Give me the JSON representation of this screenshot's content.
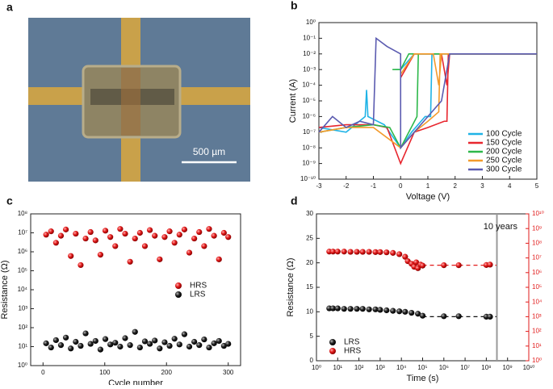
{
  "image_panel": {
    "label": "a",
    "scale_bar": "500 µm"
  },
  "chart_data": [
    {
      "type": "line",
      "label": "b",
      "xlabel": "Voltage (V)",
      "ylabel": "Current (A)",
      "yscale": "log",
      "legend": "lower right",
      "xlim": [
        -3,
        5
      ],
      "xticks": [
        -3,
        -2,
        -1,
        0,
        1,
        2,
        3,
        4,
        5
      ],
      "ylim": [
        1e-10,
        1
      ],
      "yticks": [
        {
          "value": 1e-10,
          "label": "10⁻¹⁰"
        },
        {
          "value": 1e-09,
          "label": "10⁻⁹"
        },
        {
          "value": 1e-08,
          "label": "10⁻⁸"
        },
        {
          "value": 1e-07,
          "label": "10⁻⁷"
        },
        {
          "value": 1e-06,
          "label": "10⁻⁶"
        },
        {
          "value": 1e-05,
          "label": "10⁻⁵"
        },
        {
          "value": 0.0001,
          "label": "10⁻⁴"
        },
        {
          "value": 0.001,
          "label": "10⁻³"
        },
        {
          "value": 0.01,
          "label": "10⁻²"
        },
        {
          "value": 0.1,
          "label": "10⁻¹"
        },
        {
          "value": 1,
          "label": "10⁰"
        }
      ],
      "series": [
        {
          "name": "100 Cycle",
          "color": "#1fb3e6",
          "x": [
            -3,
            -2,
            -1.3,
            -1.25,
            -1.2,
            -0.6,
            0,
            0.4,
            0.9,
            1.1,
            1.15,
            5,
            1.3,
            0.5,
            0,
            -0.2
          ],
          "values": [
            2e-07,
            1e-07,
            1e-06,
            5e-05,
            1e-06,
            3e-07,
            1e-08,
            1e-07,
            1e-06,
            1e-06,
            0.01,
            0.01,
            0.01,
            0.01,
            0.001,
            0.001
          ]
        },
        {
          "name": "150 Cycle",
          "color": "#e8262e",
          "x": [
            -3,
            -2,
            -1,
            -0.5,
            0,
            0.5,
            1,
            1.6,
            1.7,
            1.75,
            5,
            1.8,
            1.7,
            1.5,
            0.5,
            0
          ],
          "values": [
            2e-07,
            3e-07,
            3e-07,
            2e-07,
            1e-09,
            1e-07,
            2e-07,
            5e-07,
            5e-07,
            0.01,
            0.01,
            0.01,
            0.0001,
            0.01,
            0.01,
            0.0003
          ]
        },
        {
          "name": "200 Cycle",
          "color": "#2db84a",
          "x": [
            -3,
            -2,
            -1,
            -0.4,
            0,
            0.3,
            0.6,
            0.65,
            5,
            0.7,
            0.3,
            0,
            -0.3
          ],
          "values": [
            1e-07,
            2e-07,
            3e-07,
            2e-07,
            1e-08,
            1e-07,
            1e-06,
            0.01,
            0.01,
            0.01,
            0.01,
            0.001,
            0.001
          ]
        },
        {
          "name": "250 Cycle",
          "color": "#f39a2b",
          "x": [
            -3,
            -2,
            -1,
            0,
            0.5,
            1,
            1.4,
            1.45,
            5,
            1.5,
            1.4,
            1.2,
            0.5,
            0
          ],
          "values": [
            1e-07,
            2e-07,
            2e-07,
            1e-08,
            1e-07,
            5e-07,
            2e-06,
            0.01,
            0.01,
            0.01,
            0.0001,
            0.01,
            0.01,
            0.0005
          ]
        },
        {
          "name": "300 Cycle",
          "color": "#5b5bb0",
          "x": [
            -3,
            -2.5,
            -2,
            -1.5,
            -1,
            -0.9,
            -0.5,
            0,
            0,
            0.5,
            1,
            1.5,
            1.8,
            5
          ],
          "values": [
            1e-07,
            1e-06,
            2e-07,
            5e-07,
            3e-07,
            0.1,
            0.03,
            0.01,
            1e-08,
            1e-07,
            1e-06,
            1e-05,
            0.01,
            0.01
          ]
        }
      ]
    },
    {
      "type": "scatter",
      "label": "c",
      "xlabel": "Cycle number",
      "ylabel": "Resistance (Ω)",
      "yscale": "log",
      "legend": "center right",
      "xlim": [
        -20,
        320
      ],
      "xticks": [
        0,
        100,
        200,
        300
      ],
      "ylim": [
        1,
        100000000
      ],
      "yticks": [
        {
          "value": 1,
          "label": "10⁰"
        },
        {
          "value": 10,
          "label": "10¹"
        },
        {
          "value": 100,
          "label": "10²"
        },
        {
          "value": 1000,
          "label": "10³"
        },
        {
          "value": 10000,
          "label": "10⁴"
        },
        {
          "value": 100000,
          "label": "10⁵"
        },
        {
          "value": 1000000,
          "label": "10⁶"
        },
        {
          "value": 10000000,
          "label": "10⁷"
        },
        {
          "value": 100000000,
          "label": "10⁸"
        }
      ],
      "series": [
        {
          "name": "HRS",
          "color": "#e21b1b",
          "x": [
            5,
            13,
            21,
            29,
            37,
            45,
            53,
            61,
            69,
            77,
            85,
            93,
            101,
            109,
            117,
            125,
            133,
            141,
            149,
            157,
            165,
            173,
            181,
            189,
            197,
            205,
            213,
            221,
            229,
            237,
            245,
            253,
            261,
            269,
            277,
            285,
            293,
            300
          ],
          "values": [
            8000000,
            12000000,
            3000000,
            7000000,
            15000000,
            600000,
            9000000,
            200000,
            5000000,
            11000000,
            4000000,
            700000,
            13000000,
            6000000,
            2000000,
            16000000,
            9000000,
            300000,
            5000000,
            10000000,
            2000000,
            14000000,
            7000000,
            400000,
            6000000,
            12000000,
            3000000,
            8000000,
            15000000,
            900000,
            5000000,
            11000000,
            2000000,
            16000000,
            7000000,
            400000,
            10000000,
            6000000
          ]
        },
        {
          "name": "LRS",
          "color": "#111111",
          "x": [
            5,
            13,
            21,
            29,
            37,
            45,
            53,
            61,
            69,
            77,
            85,
            93,
            101,
            109,
            117,
            125,
            133,
            141,
            149,
            157,
            165,
            173,
            181,
            189,
            197,
            205,
            213,
            221,
            229,
            237,
            245,
            253,
            261,
            269,
            277,
            285,
            293,
            300
          ],
          "values": [
            15,
            9,
            22,
            12,
            30,
            8,
            18,
            11,
            50,
            14,
            20,
            7,
            25,
            13,
            16,
            10,
            28,
            12,
            60,
            9,
            19,
            14,
            21,
            8,
            17,
            11,
            26,
            13,
            45,
            10,
            18,
            12,
            24,
            9,
            15,
            20,
            11,
            14
          ]
        }
      ]
    },
    {
      "type": "scatter",
      "label": "d",
      "xlabel": "Time (s)",
      "ylabel": "Resistance (Ω)",
      "xscale": "log",
      "y2scale": "log",
      "y2color": "#e21b1b",
      "legend": "lower left",
      "annotation": "10 years",
      "marker_x": 315360000,
      "xlim": [
        1,
        10000000000
      ],
      "xticks": [
        {
          "value": 1,
          "label": "10⁰"
        },
        {
          "value": 10,
          "label": "10¹"
        },
        {
          "value": 100,
          "label": "10²"
        },
        {
          "value": 1000,
          "label": "10³"
        },
        {
          "value": 10000,
          "label": "10⁴"
        },
        {
          "value": 100000,
          "label": "10⁵"
        },
        {
          "value": 1000000,
          "label": "10⁶"
        },
        {
          "value": 10000000,
          "label": "10⁷"
        },
        {
          "value": 100000000,
          "label": "10⁸"
        },
        {
          "value": 1000000000,
          "label": "10⁹"
        },
        {
          "value": 10000000000,
          "label": "10¹⁰"
        }
      ],
      "ylim": [
        0,
        30
      ],
      "yticks": [
        0,
        5,
        10,
        15,
        20,
        25,
        30
      ],
      "y2lim": [
        1,
        10000000000
      ],
      "y2ticks": [
        {
          "value": 1,
          "label": "10⁰"
        },
        {
          "value": 10,
          "label": "10¹"
        },
        {
          "value": 100,
          "label": "10²"
        },
        {
          "value": 1000,
          "label": "10³"
        },
        {
          "value": 10000,
          "label": "10⁴"
        },
        {
          "value": 100000,
          "label": "10⁵"
        },
        {
          "value": 1000000,
          "label": "10⁶"
        },
        {
          "value": 10000000,
          "label": "10⁷"
        },
        {
          "value": 100000000,
          "label": "10⁸"
        },
        {
          "value": 1000000000,
          "label": "10⁹"
        },
        {
          "value": 10000000000,
          "label": "10¹⁰"
        }
      ],
      "series": [
        {
          "name": "LRS",
          "color": "#111111",
          "x": [
            4,
            6,
            10,
            20,
            40,
            80,
            150,
            300,
            600,
            1000,
            2000,
            4000,
            8000,
            15000,
            30000,
            60000,
            100000,
            1000000,
            5000000,
            100000000,
            150000000
          ],
          "values": [
            10.7,
            10.7,
            10.7,
            10.6,
            10.6,
            10.6,
            10.6,
            10.5,
            10.5,
            10.4,
            10.3,
            10.2,
            10.1,
            10.0,
            9.8,
            9.6,
            9.2,
            9.1,
            9.1,
            9.0,
            9.0
          ]
        },
        {
          "name": "HRS",
          "color": "#e21b1b",
          "axis": "y2",
          "x": [
            4,
            6,
            10,
            20,
            40,
            80,
            150,
            300,
            600,
            1000,
            2000,
            4000,
            8000,
            15000,
            20000,
            30000,
            40000,
            50000,
            60000,
            80000,
            100000,
            1000000,
            5000000,
            100000000,
            150000000
          ],
          "values": [
            27000000,
            27000000,
            27000000,
            27000000,
            26000000,
            26000000,
            26000000,
            26000000,
            25000000,
            25000000,
            24000000,
            22000000,
            18000000,
            12000000,
            6000000,
            4000000,
            2500000,
            5000000,
            2000000,
            3500000,
            3000000,
            3200000,
            3200000,
            3300000,
            3500000
          ]
        }
      ],
      "dashed_lines": [
        {
          "color": "#111111",
          "x": [
            100000,
            300000000
          ],
          "values": [
            9.0,
            9.0
          ]
        },
        {
          "color": "#e21b1b",
          "axis": "y2",
          "x": [
            100000,
            300000000
          ],
          "values": [
            3200000,
            3200000
          ]
        }
      ]
    }
  ]
}
